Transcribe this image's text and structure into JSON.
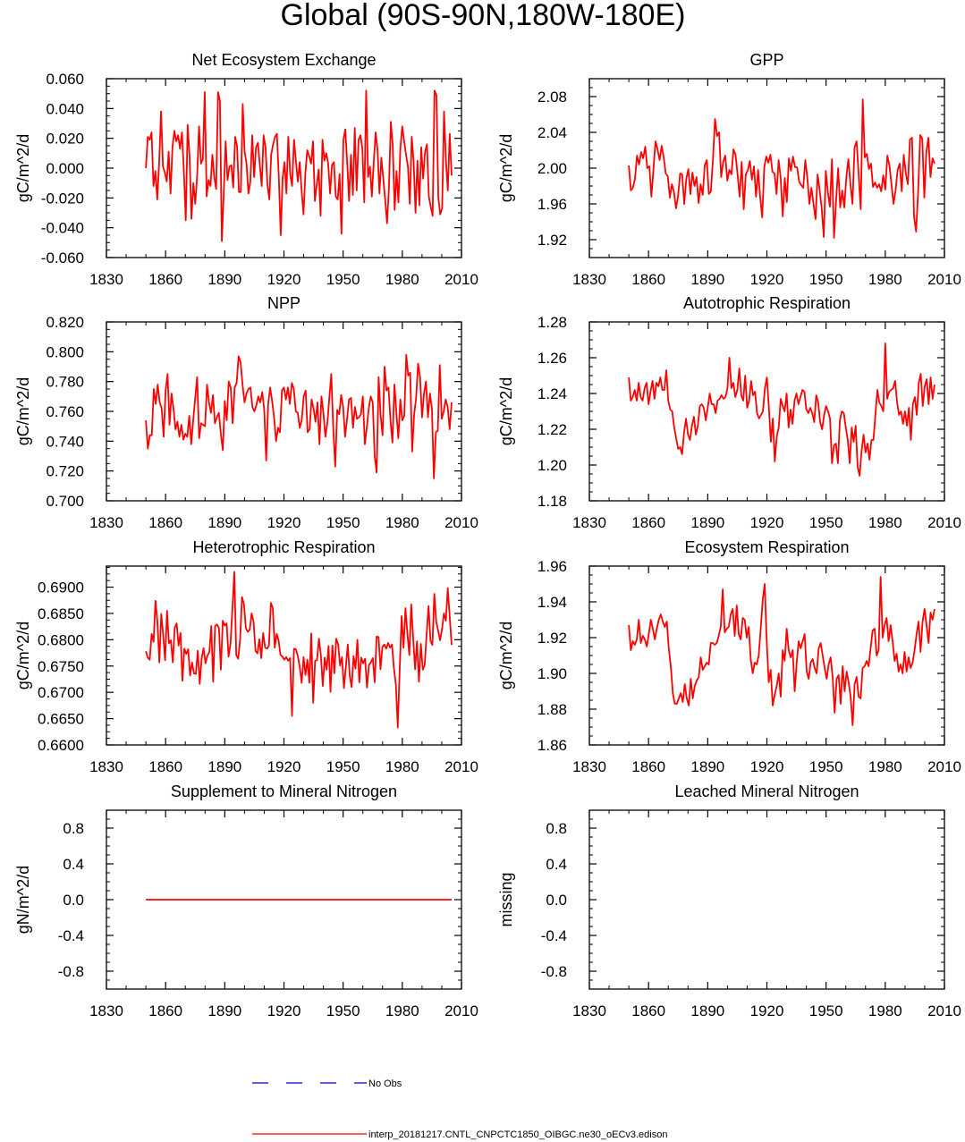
{
  "title": "Global (90S-90N,180W-180E)",
  "colors": {
    "model": "#ff0000",
    "obs": "#0000cc",
    "axis": "#000000"
  },
  "legend": {
    "obs_label": "No Obs",
    "model_label": "interp_20181217.CNTL_CNPCTC1850_OIBGC.ne30_oECv3.edison"
  },
  "chart_data": [
    {
      "type": "line",
      "title": "Net Ecosystem Exchange",
      "ylabel": "gC/m^2/d",
      "xlim": [
        1830,
        2010
      ],
      "xticks": [
        "1830",
        "1860",
        "1890",
        "1920",
        "1950",
        "1980",
        "2010"
      ],
      "ylim": [
        -0.06,
        0.06
      ],
      "yticks": [
        "-0.060",
        "-0.040",
        "-0.020",
        "0.000",
        "0.020",
        "0.040",
        "0.060"
      ],
      "x_start": 1850,
      "x_end": 2005,
      "y": [
        0,
        0.021,
        0.019,
        0.024,
        -0.012,
        -0.002,
        -0.021,
        0.004,
        0.038,
        0.001,
        -0.003,
        -0.009,
        0.011,
        -0.017,
        0.014,
        0.025,
        0.018,
        0.022,
        0.013,
        0.024,
        -0.002,
        -0.035,
        0.029,
        0.008,
        -0.034,
        -0.01,
        -0.024,
        -0.005,
        0.028,
        0.003,
        0.006,
        0.051,
        -0.019,
        -0.008,
        -0.012,
        0.009,
        -0.006,
        -0.014,
        0.051,
        0.045,
        -0.049,
        -0.017,
        0.018,
        -0.008,
        0.001,
        0.002,
        -0.013,
        0.021,
        0.015,
        -0.016,
        -0.016,
        0.043,
        0.011,
        0.003,
        -0.017,
        -0.009,
        0.022,
        -0.006,
        0.014,
        0.017,
        0.002,
        -0.012,
        0.022,
        0.014,
        -0.011,
        -0.021,
        0.009,
        0.016,
        0.021,
        0.023,
        -0.006,
        -0.045,
        -0.007,
        0.004,
        -0.017,
        0.021,
        -0.004,
        -0.012,
        0.019,
        0.005,
        -0.009,
        0.004,
        -0.015,
        -0.031,
        -0.003,
        0.012,
        0.008,
        0.003,
        0.018,
        -0.022,
        -0.011,
        -0.001,
        -0.032,
        0.019,
        0.005,
        0.01,
        0.003,
        -0.017,
        0.002,
        0.004,
        -0.019,
        -0.021,
        -0.004,
        -0.044,
        0.019,
        0.026,
        0.004,
        -0.022,
        0.009,
        -0.018,
        0.027,
        -0.015,
        0.019,
        0.022,
        0.013,
        -0.023,
        0.052,
        -0.006,
        0.001,
        -0.019,
        0.004,
        0.024,
        0.012,
        -0.017,
        0.007,
        -0.007,
        -0.021,
        -0.037,
        -0.013,
        0.031,
        0.015,
        -0.028,
        -0.002,
        -0.023,
        0.013,
        0.028,
        0.018,
        0.009,
        0.001,
        -0.024,
        0.021,
        0.004,
        -0.03,
        0.005,
        -0.025,
        0.014,
        -0.007,
        0.011,
        0.016,
        -0.019,
        -0.026,
        -0.032,
        0.052,
        0.049,
        -0.02,
        -0.031,
        -0.027,
        0.038,
        0.005,
        -0.015,
        0.023,
        -0.005
      ]
    },
    {
      "type": "line",
      "title": "GPP",
      "ylabel": "gC/m^2/d",
      "xlim": [
        1830,
        2010
      ],
      "xticks": [
        "1830",
        "1860",
        "1890",
        "1920",
        "1950",
        "1980",
        "2010"
      ],
      "ylim": [
        1.9,
        2.1
      ],
      "yticks": [
        "1.92",
        "1.96",
        "2.00",
        "2.04",
        "2.08"
      ],
      "x_start": 1850,
      "x_end": 2005,
      "y": [
        2.003,
        1.975,
        1.978,
        1.988,
        2.014,
        2.004,
        2.018,
        2.011,
        2.024,
        2.0,
        2.002,
        1.968,
        1.999,
        2.03,
        2.021,
        2.009,
        2.025,
        2.012,
        1.994,
        1.991,
        1.967,
        1.982,
        1.973,
        1.955,
        1.969,
        1.994,
        1.993,
        1.96,
        1.988,
        1.999,
        1.971,
        1.995,
        1.98,
        1.99,
        1.961,
        1.982,
        1.97,
        2.003,
        2.009,
        1.971,
        1.974,
        2.01,
        2.055,
        2.036,
        2.04,
        1.99,
        2.007,
        2.014,
        1.986,
        1.998,
        1.993,
        2.021,
        2.015,
        1.993,
        1.968,
        2.007,
        1.954,
        1.993,
        1.998,
        2.008,
        1.987,
        2.002,
        1.968,
        1.998,
        1.968,
        1.945,
        2.001,
        2.013,
        2.006,
        2.015,
        1.996,
        1.994,
        1.971,
        2.009,
        1.989,
        1.946,
        1.989,
        1.962,
        2.011,
        1.997,
        2.013,
        2.001,
        2.001,
        1.985,
        1.981,
        1.978,
        2.009,
        1.989,
        1.96,
        1.978,
        1.96,
        1.943,
        1.993,
        1.975,
        1.955,
        1.923,
        1.997,
        1.973,
        1.957,
        2.01,
        1.922,
        1.963,
        2.0,
        1.956,
        1.975,
        1.956,
        1.99,
        2.01,
        1.982,
        1.96,
        2.023,
        2.03,
        1.993,
        1.954,
        2.077,
        2.012,
        2.016,
        1.999,
        2.005,
        1.979,
        1.984,
        1.978,
        1.982,
        1.974,
        1.992,
        1.976,
        2.014,
        2.003,
        1.982,
        1.96,
        1.975,
        1.998,
        2.005,
        1.974,
        2.015,
        1.994,
        1.982,
        2.032,
        2.034,
        1.946,
        1.929,
        1.974,
        2.037,
        2.033,
        1.967,
        2.018,
        2.034,
        1.99,
        2.011,
        2.005
      ]
    },
    {
      "type": "line",
      "title": "NPP",
      "ylabel": "gC/m^2/d",
      "xlim": [
        1830,
        2010
      ],
      "xticks": [
        "1830",
        "1860",
        "1890",
        "1920",
        "1950",
        "1980",
        "2010"
      ],
      "ylim": [
        0.7,
        0.82
      ],
      "yticks": [
        "0.700",
        "0.720",
        "0.740",
        "0.760",
        "0.780",
        "0.800",
        "0.820"
      ],
      "x_start": 1850,
      "x_end": 2005,
      "y": [
        0.754,
        0.735,
        0.744,
        0.744,
        0.775,
        0.765,
        0.778,
        0.766,
        0.762,
        0.743,
        0.774,
        0.785,
        0.751,
        0.772,
        0.762,
        0.748,
        0.753,
        0.743,
        0.751,
        0.741,
        0.745,
        0.743,
        0.757,
        0.738,
        0.754,
        0.769,
        0.783,
        0.742,
        0.752,
        0.751,
        0.75,
        0.778,
        0.766,
        0.759,
        0.771,
        0.752,
        0.756,
        0.759,
        0.745,
        0.734,
        0.767,
        0.754,
        0.78,
        0.776,
        0.752,
        0.776,
        0.779,
        0.797,
        0.793,
        0.778,
        0.766,
        0.772,
        0.775,
        0.776,
        0.763,
        0.76,
        0.764,
        0.77,
        0.766,
        0.773,
        0.761,
        0.727,
        0.765,
        0.776,
        0.767,
        0.756,
        0.74,
        0.749,
        0.746,
        0.774,
        0.776,
        0.768,
        0.776,
        0.765,
        0.779,
        0.775,
        0.76,
        0.759,
        0.749,
        0.754,
        0.77,
        0.774,
        0.746,
        0.748,
        0.768,
        0.762,
        0.753,
        0.766,
        0.738,
        0.77,
        0.759,
        0.743,
        0.752,
        0.769,
        0.785,
        0.748,
        0.723,
        0.761,
        0.758,
        0.771,
        0.763,
        0.743,
        0.755,
        0.768,
        0.769,
        0.749,
        0.763,
        0.755,
        0.756,
        0.758,
        0.77,
        0.738,
        0.749,
        0.762,
        0.77,
        0.766,
        0.73,
        0.719,
        0.783,
        0.757,
        0.744,
        0.79,
        0.774,
        0.776,
        0.754,
        0.739,
        0.778,
        0.759,
        0.742,
        0.768,
        0.754,
        0.757,
        0.798,
        0.784,
        0.786,
        0.733,
        0.758,
        0.769,
        0.792,
        0.783,
        0.756,
        0.772,
        0.78,
        0.756,
        0.772,
        0.762,
        0.715,
        0.746,
        0.747,
        0.791,
        0.755,
        0.76,
        0.768,
        0.763,
        0.748,
        0.766
      ]
    },
    {
      "type": "line",
      "title": "Autotrophic Respiration",
      "ylabel": "gC/m^2/d",
      "xlim": [
        1830,
        2010
      ],
      "xticks": [
        "1830",
        "1860",
        "1890",
        "1920",
        "1950",
        "1980",
        "2010"
      ],
      "ylim": [
        1.18,
        1.28
      ],
      "yticks": [
        "1.18",
        "1.20",
        "1.22",
        "1.24",
        "1.26",
        "1.28"
      ],
      "x_start": 1850,
      "x_end": 2005,
      "y": [
        1.249,
        1.236,
        1.238,
        1.242,
        1.236,
        1.246,
        1.238,
        1.236,
        1.243,
        1.246,
        1.234,
        1.241,
        1.247,
        1.237,
        1.246,
        1.244,
        1.249,
        1.242,
        1.242,
        1.253,
        1.236,
        1.231,
        1.23,
        1.221,
        1.215,
        1.209,
        1.21,
        1.206,
        1.218,
        1.226,
        1.217,
        1.214,
        1.222,
        1.227,
        1.217,
        1.222,
        1.233,
        1.234,
        1.232,
        1.225,
        1.232,
        1.24,
        1.234,
        1.234,
        1.229,
        1.236,
        1.237,
        1.239,
        1.237,
        1.238,
        1.243,
        1.26,
        1.243,
        1.246,
        1.238,
        1.242,
        1.254,
        1.239,
        1.236,
        1.25,
        1.232,
        1.236,
        1.247,
        1.239,
        1.241,
        1.229,
        1.226,
        1.228,
        1.23,
        1.243,
        1.249,
        1.232,
        1.213,
        1.226,
        1.202,
        1.216,
        1.221,
        1.237,
        1.233,
        1.23,
        1.24,
        1.221,
        1.231,
        1.223,
        1.236,
        1.24,
        1.234,
        1.238,
        1.242,
        1.241,
        1.231,
        1.229,
        1.232,
        1.229,
        1.224,
        1.239,
        1.235,
        1.224,
        1.22,
        1.228,
        1.233,
        1.23,
        1.226,
        1.201,
        1.211,
        1.212,
        1.201,
        1.225,
        1.23,
        1.229,
        1.221,
        1.214,
        1.201,
        1.221,
        1.213,
        1.222,
        1.199,
        1.194,
        1.208,
        1.217,
        1.207,
        1.212,
        1.203,
        1.214,
        1.214,
        1.228,
        1.242,
        1.235,
        1.233,
        1.23,
        1.268,
        1.237,
        1.241,
        1.242,
        1.243,
        1.247,
        1.235,
        1.228,
        1.23,
        1.223,
        1.23,
        1.222,
        1.232,
        1.214,
        1.234,
        1.238,
        1.228,
        1.246,
        1.251,
        1.233,
        1.244,
        1.248,
        1.234,
        1.249,
        1.237,
        1.245
      ]
    },
    {
      "type": "line",
      "title": "Heterotrophic Respiration",
      "ylabel": "gC/m^2/d",
      "xlim": [
        1830,
        2010
      ],
      "xticks": [
        "1830",
        "1860",
        "1890",
        "1920",
        "1950",
        "1980",
        "2010"
      ],
      "ylim": [
        0.66,
        0.694
      ],
      "yticks": [
        "0.6600",
        "0.6650",
        "0.6700",
        "0.6750",
        "0.6800",
        "0.6850",
        "0.6900"
      ],
      "x_start": 1850,
      "x_end": 2005,
      "y": [
        0.6778,
        0.6766,
        0.6762,
        0.6811,
        0.6796,
        0.6874,
        0.6834,
        0.6757,
        0.6849,
        0.6809,
        0.6761,
        0.6855,
        0.6793,
        0.6799,
        0.6757,
        0.6823,
        0.6831,
        0.6789,
        0.6813,
        0.6722,
        0.6783,
        0.6773,
        0.6782,
        0.6732,
        0.6757,
        0.6736,
        0.6735,
        0.6779,
        0.6716,
        0.6764,
        0.6784,
        0.6755,
        0.677,
        0.6776,
        0.6826,
        0.672,
        0.6826,
        0.6829,
        0.6822,
        0.6743,
        0.6836,
        0.6827,
        0.6831,
        0.6768,
        0.6792,
        0.6859,
        0.6929,
        0.6771,
        0.6764,
        0.68,
        0.6881,
        0.6868,
        0.6822,
        0.6815,
        0.6819,
        0.685,
        0.6834,
        0.6779,
        0.6774,
        0.6801,
        0.6765,
        0.6813,
        0.6785,
        0.6783,
        0.6789,
        0.687,
        0.686,
        0.6785,
        0.6811,
        0.6799,
        0.6771,
        0.6768,
        0.6762,
        0.6767,
        0.676,
        0.6765,
        0.6655,
        0.6783,
        0.6782,
        0.6769,
        0.6749,
        0.6718,
        0.6767,
        0.6733,
        0.6762,
        0.6718,
        0.6812,
        0.668,
        0.676,
        0.6761,
        0.6802,
        0.6771,
        0.6712,
        0.6766,
        0.6743,
        0.6788,
        0.6701,
        0.6789,
        0.6736,
        0.6802,
        0.6791,
        0.6751,
        0.6767,
        0.6708,
        0.6749,
        0.6791,
        0.6732,
        0.671,
        0.6769,
        0.6745,
        0.68,
        0.6719,
        0.6766,
        0.6755,
        0.6764,
        0.6709,
        0.6752,
        0.6757,
        0.6765,
        0.6719,
        0.6806,
        0.6805,
        0.6744,
        0.6786,
        0.6791,
        0.6783,
        0.6794,
        0.6785,
        0.6791,
        0.6745,
        0.6715,
        0.6633,
        0.6744,
        0.6845,
        0.6785,
        0.686,
        0.6812,
        0.6771,
        0.6867,
        0.6803,
        0.6744,
        0.6797,
        0.672,
        0.6792,
        0.6743,
        0.6752,
        0.6811,
        0.6864,
        0.6798,
        0.679,
        0.6887,
        0.6834,
        0.6817,
        0.6799,
        0.682,
        0.685,
        0.6836,
        0.6898,
        0.6844,
        0.679
      ]
    },
    {
      "type": "line",
      "title": "Ecosystem Respiration",
      "ylabel": "gC/m^2/d",
      "xlim": [
        1830,
        2010
      ],
      "xticks": [
        "1830",
        "1860",
        "1890",
        "1920",
        "1950",
        "1980",
        "2010"
      ],
      "ylim": [
        1.86,
        1.96
      ],
      "yticks": [
        "1.86",
        "1.88",
        "1.90",
        "1.92",
        "1.94",
        "1.96"
      ],
      "x_start": 1850,
      "x_end": 2005,
      "y": [
        1.927,
        1.913,
        1.918,
        1.916,
        1.919,
        1.93,
        1.917,
        1.921,
        1.919,
        1.915,
        1.922,
        1.93,
        1.925,
        1.919,
        1.925,
        1.93,
        1.933,
        1.929,
        1.926,
        1.929,
        1.914,
        1.904,
        1.889,
        1.883,
        1.883,
        1.886,
        1.889,
        1.884,
        1.894,
        1.886,
        1.882,
        1.897,
        1.886,
        1.893,
        1.896,
        1.898,
        1.909,
        1.902,
        1.904,
        1.906,
        1.905,
        1.917,
        1.917,
        1.916,
        1.917,
        1.921,
        1.926,
        1.947,
        1.923,
        1.925,
        1.926,
        1.933,
        1.936,
        1.921,
        1.938,
        1.922,
        1.919,
        1.931,
        1.93,
        1.92,
        1.926,
        1.908,
        1.9,
        1.906,
        1.905,
        1.91,
        1.925,
        1.941,
        1.95,
        1.918,
        1.895,
        1.902,
        1.882,
        1.888,
        1.893,
        1.9,
        1.887,
        1.913,
        1.907,
        1.925,
        1.913,
        1.909,
        1.913,
        1.89,
        1.906,
        1.918,
        1.914,
        1.918,
        1.922,
        1.901,
        1.897,
        1.906,
        1.908,
        1.903,
        1.9,
        1.914,
        1.917,
        1.91,
        1.903,
        1.897,
        1.905,
        1.909,
        1.898,
        1.878,
        1.897,
        1.899,
        1.883,
        1.904,
        1.89,
        1.901,
        1.895,
        1.887,
        1.871,
        1.894,
        1.898,
        1.887,
        1.886,
        1.903,
        1.904,
        1.907,
        1.904,
        1.914,
        1.924,
        1.925,
        1.91,
        1.913,
        1.954,
        1.92,
        1.927,
        1.931,
        1.918,
        1.927,
        1.918,
        1.907,
        1.911,
        1.901,
        1.905,
        1.9,
        1.912,
        1.901,
        1.909,
        1.903,
        1.906,
        1.913,
        1.922,
        1.929,
        1.912,
        1.929,
        1.936,
        1.927,
        1.917,
        1.934,
        1.93,
        1.936
      ]
    },
    {
      "type": "line",
      "title": "Supplement to Mineral Nitrogen",
      "ylabel": "gN/m^2/d",
      "xlim": [
        1830,
        2010
      ],
      "xticks": [
        "1830",
        "1860",
        "1890",
        "1920",
        "1950",
        "1980",
        "2010"
      ],
      "ylim": [
        -1.0,
        1.0
      ],
      "yticks": [
        "-0.8",
        "-0.4",
        "0.0",
        "0.4",
        "0.8"
      ],
      "x_start": 1850,
      "x_end": 2005,
      "y": [
        0,
        0
      ]
    },
    {
      "type": "line",
      "title": "Leached Mineral Nitrogen",
      "ylabel": "missing",
      "xlim": [
        1830,
        2010
      ],
      "xticks": [
        "1830",
        "1860",
        "1890",
        "1920",
        "1950",
        "1980",
        "2010"
      ],
      "ylim": [
        -1.0,
        1.0
      ],
      "yticks": [
        "-0.8",
        "-0.4",
        "0.0",
        "0.4",
        "0.8"
      ],
      "x_start": 1850,
      "x_end": 2005,
      "y": []
    }
  ]
}
